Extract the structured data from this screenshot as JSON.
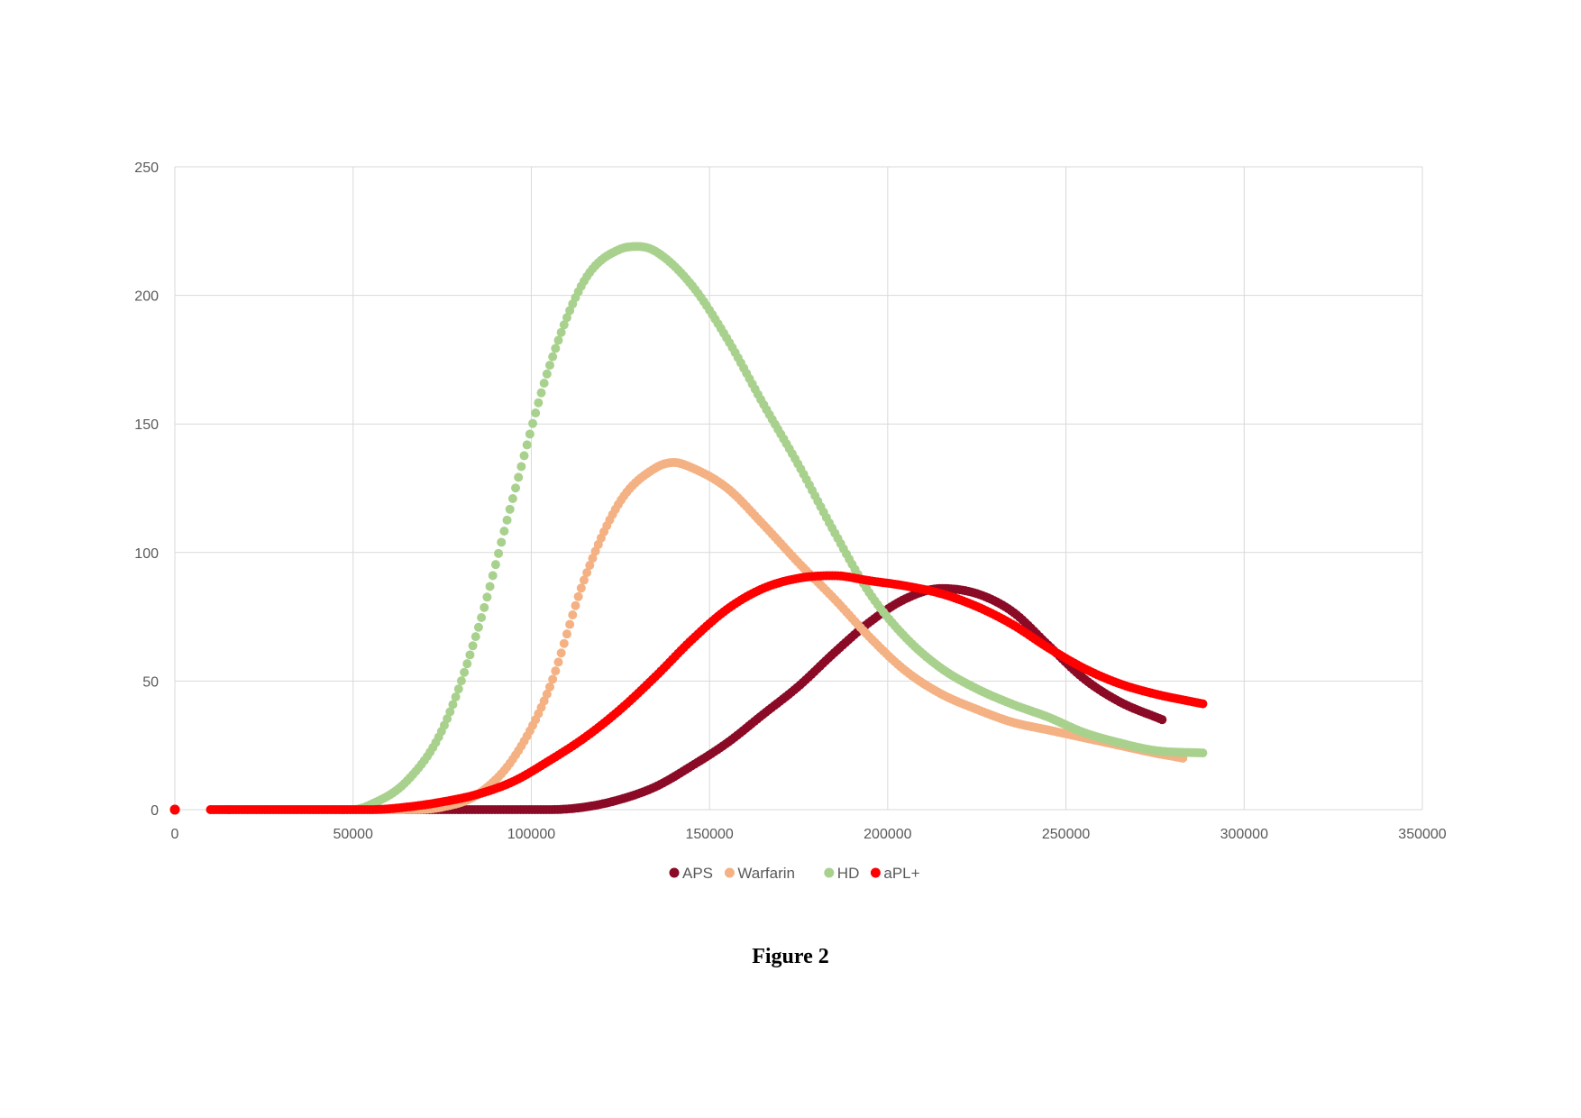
{
  "caption": "Figure 2",
  "chart_data": {
    "type": "scatter",
    "title": "",
    "xlabel": "",
    "ylabel": "",
    "xlim": [
      0,
      350000
    ],
    "ylim": [
      0,
      250
    ],
    "xticks": [
      0,
      50000,
      100000,
      150000,
      200000,
      250000,
      300000,
      350000
    ],
    "yticks": [
      0,
      50,
      100,
      150,
      200,
      250
    ],
    "grid": true,
    "legend": "bottom",
    "series": [
      {
        "name": "APS",
        "color": "#8B0A26",
        "points": [
          [
            0,
            0
          ],
          [
            65000,
            0
          ],
          [
            80000,
            0
          ],
          [
            95000,
            0
          ],
          [
            105000,
            0
          ],
          [
            115000,
            1
          ],
          [
            125000,
            4
          ],
          [
            135000,
            9
          ],
          [
            145000,
            17
          ],
          [
            155000,
            26
          ],
          [
            165000,
            37
          ],
          [
            175000,
            48
          ],
          [
            185000,
            61
          ],
          [
            195000,
            73
          ],
          [
            205000,
            82
          ],
          [
            215000,
            86
          ],
          [
            225000,
            84
          ],
          [
            235000,
            77
          ],
          [
            245000,
            64
          ],
          [
            255000,
            51
          ],
          [
            265000,
            42
          ],
          [
            277000,
            35
          ]
        ]
      },
      {
        "name": "Warfarin",
        "color": "#F4B183",
        "points": [
          [
            0,
            0
          ],
          [
            10000,
            0
          ],
          [
            40000,
            0
          ],
          [
            65000,
            0
          ],
          [
            75000,
            1
          ],
          [
            85000,
            6
          ],
          [
            95000,
            20
          ],
          [
            105000,
            47
          ],
          [
            115000,
            90
          ],
          [
            125000,
            120
          ],
          [
            135000,
            133
          ],
          [
            140000,
            135
          ],
          [
            145000,
            133
          ],
          [
            155000,
            125
          ],
          [
            165000,
            111
          ],
          [
            175000,
            96
          ],
          [
            185000,
            82
          ],
          [
            195000,
            67
          ],
          [
            205000,
            54
          ],
          [
            215000,
            45
          ],
          [
            225000,
            39
          ],
          [
            235000,
            34
          ],
          [
            245000,
            31
          ],
          [
            255000,
            28
          ],
          [
            265000,
            25
          ],
          [
            275000,
            22
          ],
          [
            283000,
            20
          ]
        ]
      },
      {
        "name": "HD",
        "color": "#A9D18E",
        "points": [
          [
            0,
            0
          ],
          [
            10000,
            0
          ],
          [
            40000,
            0
          ],
          [
            50000,
            0
          ],
          [
            55000,
            2
          ],
          [
            65000,
            11
          ],
          [
            75000,
            31
          ],
          [
            85000,
            70
          ],
          [
            95000,
            122
          ],
          [
            105000,
            172
          ],
          [
            115000,
            206
          ],
          [
            125000,
            218
          ],
          [
            130000,
            219
          ],
          [
            135000,
            217
          ],
          [
            145000,
            204
          ],
          [
            155000,
            183
          ],
          [
            165000,
            158
          ],
          [
            175000,
            134
          ],
          [
            185000,
            108
          ],
          [
            195000,
            84
          ],
          [
            205000,
            67
          ],
          [
            215000,
            55
          ],
          [
            225000,
            47
          ],
          [
            235000,
            41
          ],
          [
            245000,
            36
          ],
          [
            255000,
            30
          ],
          [
            265000,
            26
          ],
          [
            275000,
            23
          ],
          [
            289000,
            22
          ]
        ]
      },
      {
        "name": "aPL+",
        "color": "#FF0000",
        "points": [
          [
            0,
            0
          ],
          [
            10000,
            0
          ],
          [
            40000,
            0
          ],
          [
            55000,
            0
          ],
          [
            65000,
            1
          ],
          [
            75000,
            3
          ],
          [
            85000,
            6
          ],
          [
            95000,
            11
          ],
          [
            105000,
            19
          ],
          [
            115000,
            28
          ],
          [
            125000,
            39
          ],
          [
            135000,
            52
          ],
          [
            145000,
            66
          ],
          [
            155000,
            78
          ],
          [
            165000,
            86
          ],
          [
            175000,
            90
          ],
          [
            185000,
            91
          ],
          [
            195000,
            89
          ],
          [
            205000,
            87
          ],
          [
            215000,
            84
          ],
          [
            225000,
            79
          ],
          [
            235000,
            72
          ],
          [
            245000,
            63
          ],
          [
            255000,
            55
          ],
          [
            265000,
            49
          ],
          [
            275000,
            45
          ],
          [
            289000,
            41
          ]
        ]
      }
    ]
  }
}
